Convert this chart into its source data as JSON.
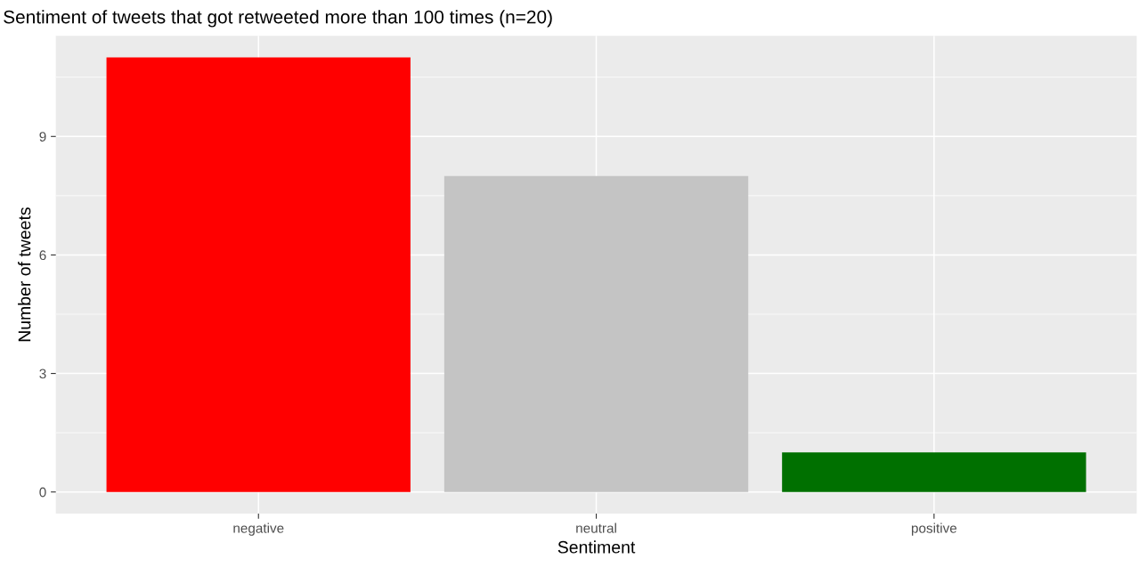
{
  "chart_data": {
    "type": "bar",
    "title": "Sentiment of tweets that got retweeted more than 100 times (n=20)",
    "xlabel": "Sentiment",
    "ylabel": "Number of tweets",
    "categories": [
      "negative",
      "neutral",
      "positive"
    ],
    "values": [
      11,
      8,
      1
    ],
    "colors": [
      "#ff0000",
      "#c4c4c4",
      "#007000"
    ],
    "ylim": [
      -0.55,
      11.55
    ],
    "yticks": [
      0,
      {
        "value": 1.5,
        "label": null
      },
      3,
      {
        "value": 4.5,
        "label": null
      },
      6,
      {
        "value": 7.5,
        "label": null
      },
      9,
      {
        "value": 10.5,
        "label": null
      }
    ],
    "grid": true,
    "legend": false
  }
}
